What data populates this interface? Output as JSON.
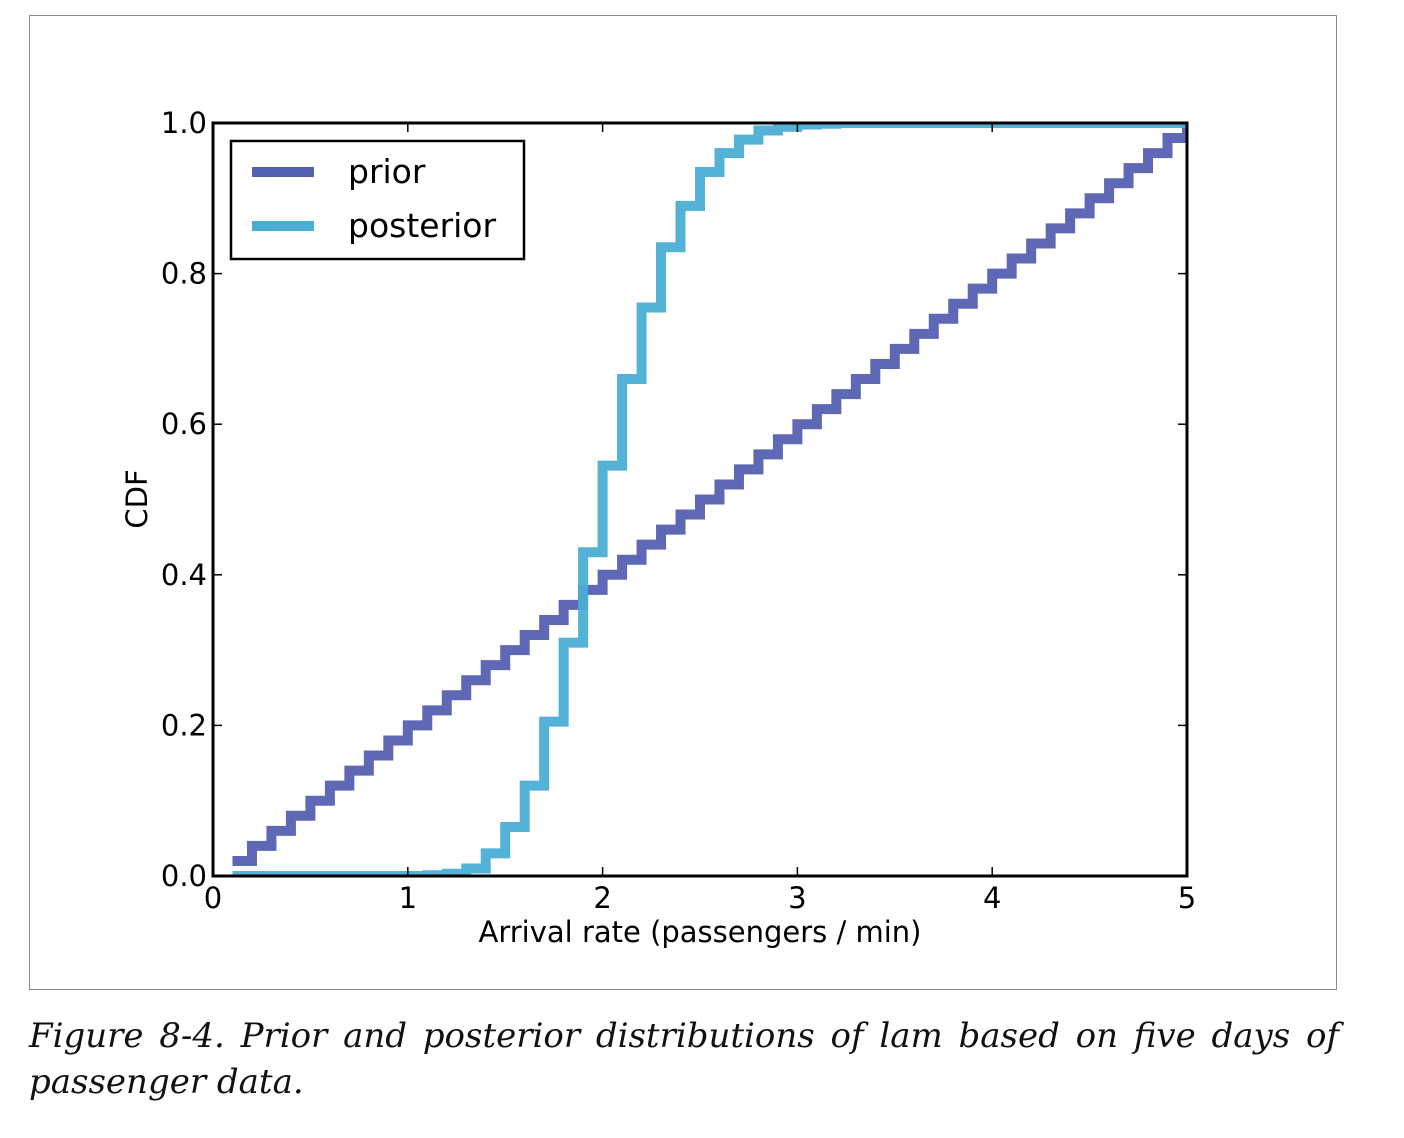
{
  "caption": "Figure 8-4. Prior and posterior distributions of lam based on five days of passenger data.",
  "chart_data": {
    "type": "line",
    "step": true,
    "title": "",
    "xlabel": "Arrival rate (passengers / min)",
    "ylabel": "CDF",
    "xlim": [
      0,
      5
    ],
    "ylim": [
      0,
      1.0
    ],
    "xticks": [
      "0",
      "1",
      "2",
      "3",
      "4",
      "5"
    ],
    "yticks": [
      "0.0",
      "0.2",
      "0.4",
      "0.6",
      "0.8",
      "1.0"
    ],
    "grid": false,
    "legend_position": "top-left",
    "series": [
      {
        "name": "prior",
        "color": "#5560b0",
        "x": [
          0.1,
          0.2,
          0.3,
          0.4,
          0.5,
          0.6,
          0.7,
          0.8,
          0.9,
          1.0,
          1.1,
          1.2,
          1.3,
          1.4,
          1.5,
          1.6,
          1.7,
          1.8,
          1.9,
          2.0,
          2.1,
          2.2,
          2.3,
          2.4,
          2.5,
          2.6,
          2.7,
          2.8,
          2.9,
          3.0,
          3.1,
          3.2,
          3.3,
          3.4,
          3.5,
          3.6,
          3.7,
          3.8,
          3.9,
          4.0,
          4.1,
          4.2,
          4.3,
          4.4,
          4.5,
          4.6,
          4.7,
          4.8,
          4.9,
          5.0
        ],
        "y": [
          0.02,
          0.04,
          0.06,
          0.08,
          0.1,
          0.12,
          0.14,
          0.16,
          0.18,
          0.2,
          0.22,
          0.24,
          0.26,
          0.28,
          0.3,
          0.32,
          0.34,
          0.36,
          0.38,
          0.4,
          0.42,
          0.44,
          0.46,
          0.48,
          0.5,
          0.52,
          0.54,
          0.56,
          0.58,
          0.6,
          0.62,
          0.64,
          0.66,
          0.68,
          0.7,
          0.72,
          0.74,
          0.76,
          0.78,
          0.8,
          0.82,
          0.84,
          0.86,
          0.88,
          0.9,
          0.92,
          0.94,
          0.96,
          0.98,
          1.0
        ]
      },
      {
        "name": "posterior",
        "color": "#4aaed4",
        "x": [
          0.1,
          0.2,
          0.3,
          0.4,
          0.5,
          0.6,
          0.7,
          0.8,
          0.9,
          1.0,
          1.1,
          1.2,
          1.3,
          1.4,
          1.5,
          1.6,
          1.7,
          1.8,
          1.9,
          2.0,
          2.1,
          2.2,
          2.3,
          2.4,
          2.5,
          2.6,
          2.7,
          2.8,
          2.9,
          3.0,
          3.1,
          3.2,
          3.3,
          3.4,
          3.5,
          3.6,
          3.7,
          3.8,
          3.9,
          4.0,
          4.1,
          4.2,
          4.3,
          4.4,
          4.5,
          4.6,
          4.7,
          4.8,
          4.9,
          5.0
        ],
        "y": [
          0.0,
          0.0,
          0.0,
          0.0,
          0.0,
          0.0,
          0.0,
          0.0,
          0.0,
          0.0,
          0.001,
          0.003,
          0.01,
          0.03,
          0.065,
          0.12,
          0.205,
          0.31,
          0.43,
          0.545,
          0.66,
          0.755,
          0.835,
          0.89,
          0.935,
          0.96,
          0.978,
          0.99,
          0.995,
          0.998,
          0.999,
          1.0,
          1.0,
          1.0,
          1.0,
          1.0,
          1.0,
          1.0,
          1.0,
          1.0,
          1.0,
          1.0,
          1.0,
          1.0,
          1.0,
          1.0,
          1.0,
          1.0,
          1.0,
          1.0
        ]
      }
    ]
  }
}
